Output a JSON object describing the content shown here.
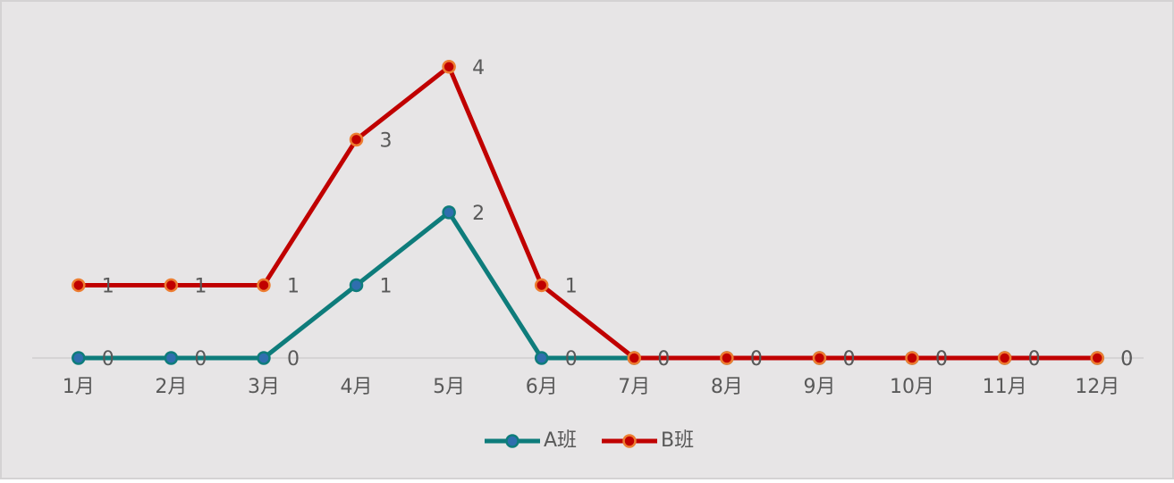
{
  "chart_data": {
    "type": "line",
    "categories": [
      "1月",
      "2月",
      "3月",
      "4月",
      "5月",
      "6月",
      "7月",
      "8月",
      "9月",
      "10月",
      "11月",
      "12月"
    ],
    "series": [
      {
        "name": "A班",
        "color": "#0e7c7b",
        "marker_color": "#2f6eae",
        "values": [
          0,
          0,
          0,
          1,
          2,
          0,
          0,
          0,
          0,
          0,
          0,
          0
        ]
      },
      {
        "name": "B班",
        "color": "#c00000",
        "marker_color": "#ed7d31",
        "values": [
          1,
          1,
          1,
          3,
          4,
          1,
          0,
          0,
          0,
          0,
          0,
          0
        ]
      }
    ],
    "ylim": [
      0,
      4.5
    ],
    "grid": false,
    "legend": "bottom"
  }
}
